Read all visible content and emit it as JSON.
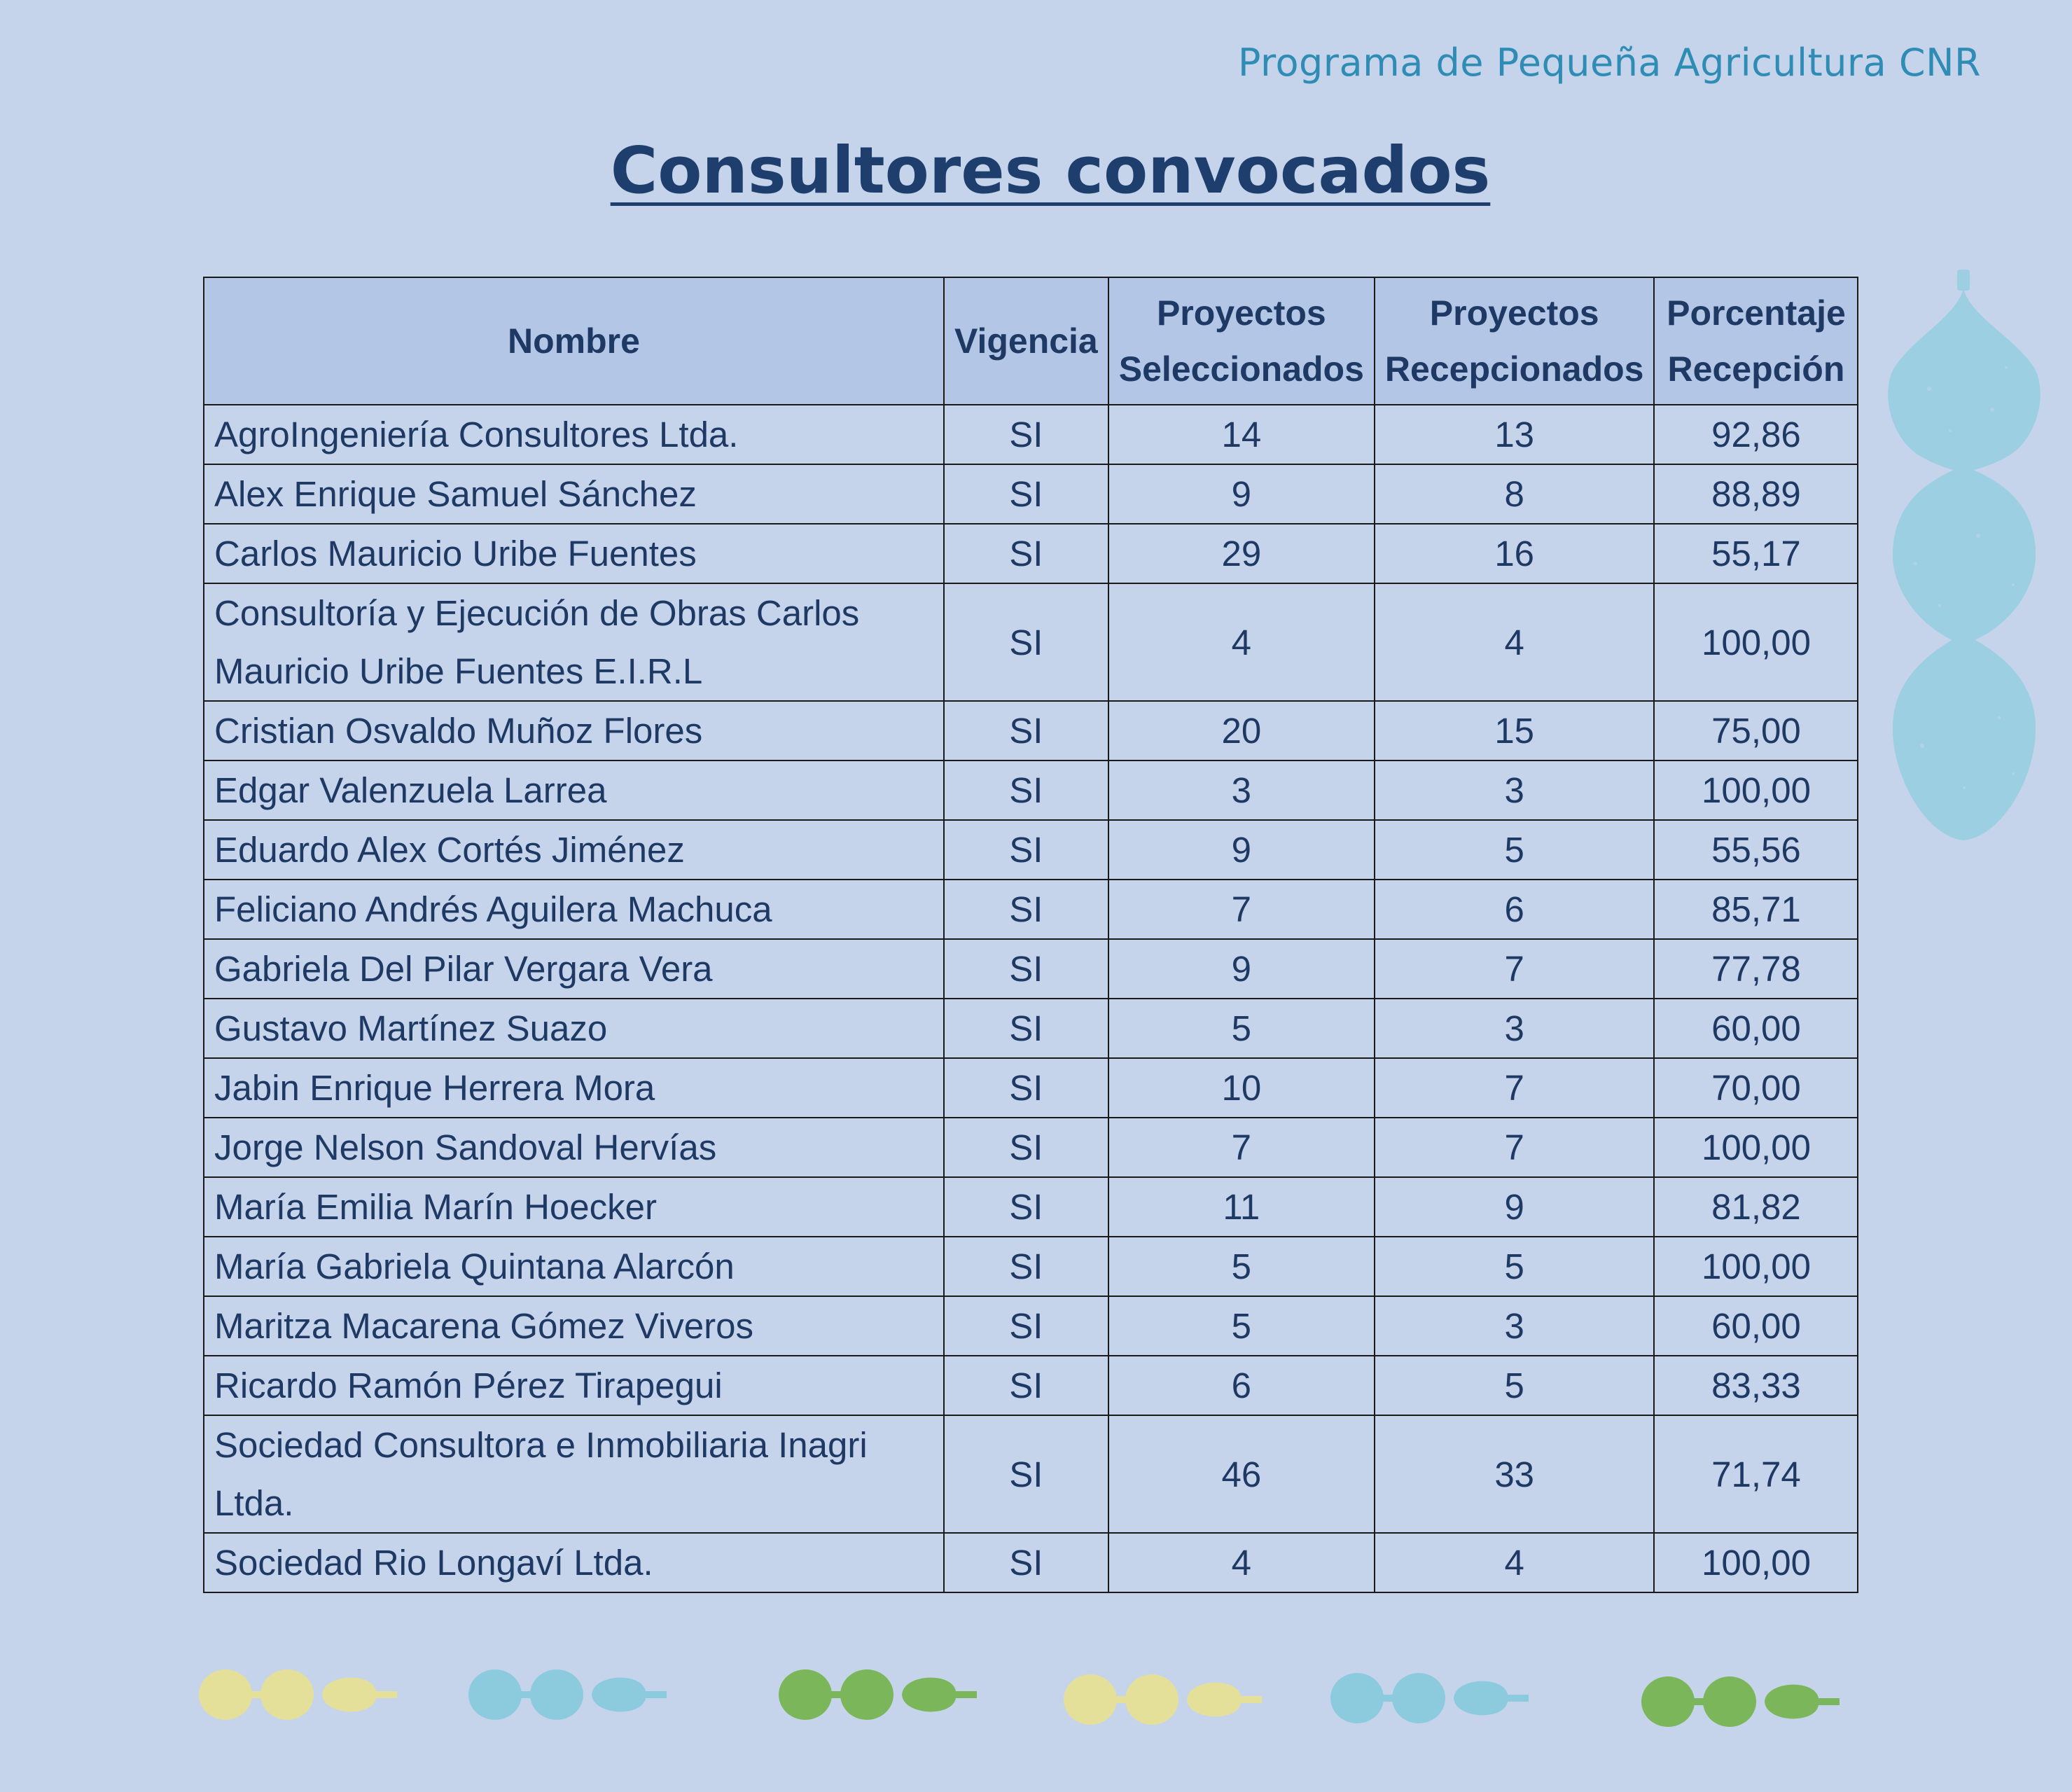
{
  "header": {
    "program": "Programa de Pequeña Agricultura CNR",
    "title": "Consultores convocados"
  },
  "table": {
    "columns": [
      {
        "line1": "Nombre",
        "line2": ""
      },
      {
        "line1": "Vigencia",
        "line2": ""
      },
      {
        "line1": "Proyectos",
        "line2": "Seleccionados"
      },
      {
        "line1": "Proyectos",
        "line2": "Recepcionados"
      },
      {
        "line1": "Porcentaje",
        "line2": "Recepción"
      }
    ],
    "rows": [
      {
        "nombre": "AgroIngeniería Consultores Ltda.",
        "vigencia": "SI",
        "seleccionados": "14",
        "recepcionados": "13",
        "porcentaje": "92,86"
      },
      {
        "nombre": "Alex Enrique Samuel Sánchez",
        "vigencia": "SI",
        "seleccionados": "9",
        "recepcionados": "8",
        "porcentaje": "88,89"
      },
      {
        "nombre": "Carlos Mauricio Uribe Fuentes",
        "vigencia": "SI",
        "seleccionados": "29",
        "recepcionados": "16",
        "porcentaje": "55,17"
      },
      {
        "nombre": "Consultoría y Ejecución de Obras Carlos Mauricio Uribe Fuentes E.I.R.L",
        "vigencia": "SI",
        "seleccionados": "4",
        "recepcionados": "4",
        "porcentaje": "100,00"
      },
      {
        "nombre": "Cristian Osvaldo Muñoz Flores",
        "vigencia": "SI",
        "seleccionados": "20",
        "recepcionados": "15",
        "porcentaje": "75,00"
      },
      {
        "nombre": "Edgar Valenzuela Larrea",
        "vigencia": "SI",
        "seleccionados": "3",
        "recepcionados": "3",
        "porcentaje": "100,00"
      },
      {
        "nombre": "Eduardo Alex Cortés Jiménez",
        "vigencia": "SI",
        "seleccionados": "9",
        "recepcionados": "5",
        "porcentaje": "55,56"
      },
      {
        "nombre": "Feliciano Andrés Aguilera Machuca",
        "vigencia": "SI",
        "seleccionados": "7",
        "recepcionados": "6",
        "porcentaje": "85,71"
      },
      {
        "nombre": "Gabriela Del Pilar Vergara Vera",
        "vigencia": "SI",
        "seleccionados": "9",
        "recepcionados": "7",
        "porcentaje": "77,78"
      },
      {
        "nombre": "Gustavo Martínez Suazo",
        "vigencia": "SI",
        "seleccionados": "5",
        "recepcionados": "3",
        "porcentaje": "60,00"
      },
      {
        "nombre": "Jabin Enrique Herrera Mora",
        "vigencia": "SI",
        "seleccionados": "10",
        "recepcionados": "7",
        "porcentaje": "70,00"
      },
      {
        "nombre": "Jorge Nelson Sandoval Hervías",
        "vigencia": "SI",
        "seleccionados": "7",
        "recepcionados": "7",
        "porcentaje": "100,00"
      },
      {
        "nombre": "María Emilia Marín Hoecker",
        "vigencia": "SI",
        "seleccionados": "11",
        "recepcionados": "9",
        "porcentaje": "81,82"
      },
      {
        "nombre": "María Gabriela Quintana Alarcón",
        "vigencia": "SI",
        "seleccionados": "5",
        "recepcionados": "5",
        "porcentaje": "100,00"
      },
      {
        "nombre": "Maritza Macarena Gómez Viveros",
        "vigencia": "SI",
        "seleccionados": "5",
        "recepcionados": "3",
        "porcentaje": "60,00"
      },
      {
        "nombre": "Ricardo Ramón Pérez Tirapegui",
        "vigencia": "SI",
        "seleccionados": "6",
        "recepcionados": "5",
        "porcentaje": "83,33"
      },
      {
        "nombre": "Sociedad Consultora e Inmobiliaria Inagri Ltda.",
        "vigencia": "SI",
        "seleccionados": "46",
        "recepcionados": "33",
        "porcentaje": "71,74"
      },
      {
        "nombre": "Sociedad Rio Longaví Ltda.",
        "vigencia": "SI",
        "seleccionados": "4",
        "recepcionados": "4",
        "porcentaje": "100,00"
      }
    ]
  },
  "decorations": {
    "side_icon": "hanging-gourd-icon",
    "side_color": "#9dcfe2",
    "bottom_icon": "seed-pod-garland-icon",
    "bottom_colors": [
      "#e4e09a",
      "#8ccbde",
      "#7bb75a",
      "#e4e09a",
      "#8ccbde",
      "#7bb75a"
    ]
  }
}
